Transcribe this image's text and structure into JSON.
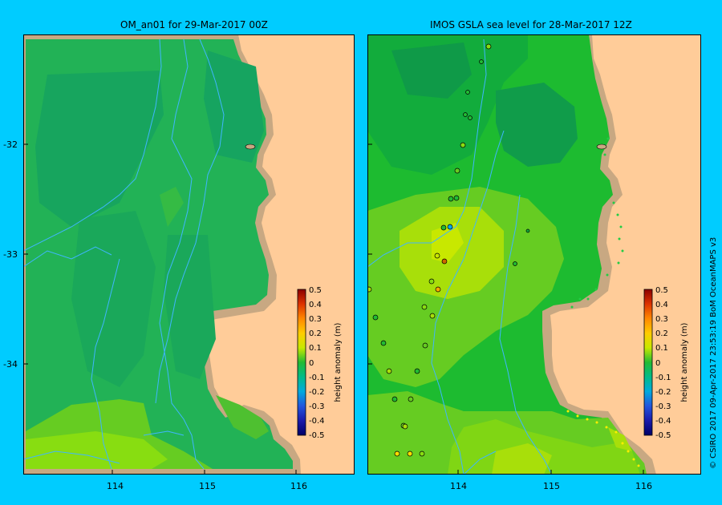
{
  "left_panel": {
    "title": "OM_an01  for 29-Mar-2017 00Z",
    "colorbar": {
      "label": "height anomaly (m)",
      "ticks": [
        "0.5",
        "0.4",
        "0.3",
        "0.2",
        "0.1",
        "0",
        "-0.1",
        "-0.2",
        "-0.3",
        "-0.4",
        "-0.5"
      ]
    }
  },
  "right_panel": {
    "title": "IMOS  GSLA sea level   for 28-Mar-2017 12Z",
    "colorbar": {
      "label": "height anomaly (m)",
      "ticks": [
        "0.5",
        "0.4",
        "0.3",
        "0.2",
        "0.1",
        "0",
        "-0.1",
        "-0.2",
        "-0.3",
        "-0.4",
        "-0.5"
      ]
    }
  },
  "axes": {
    "lat_labels": [
      "-32",
      "-33",
      "-34"
    ],
    "lon_labels": [
      "114",
      "115",
      "116"
    ]
  },
  "credit": "© CSIRO 2017   09-Apr-2017 23:53:19 BoM OceanMAPS v3",
  "colors": {
    "background": "#00ccff",
    "land": "#ffcc99",
    "coast": "#c8a882",
    "contour_line": "#3fb6ff"
  }
}
